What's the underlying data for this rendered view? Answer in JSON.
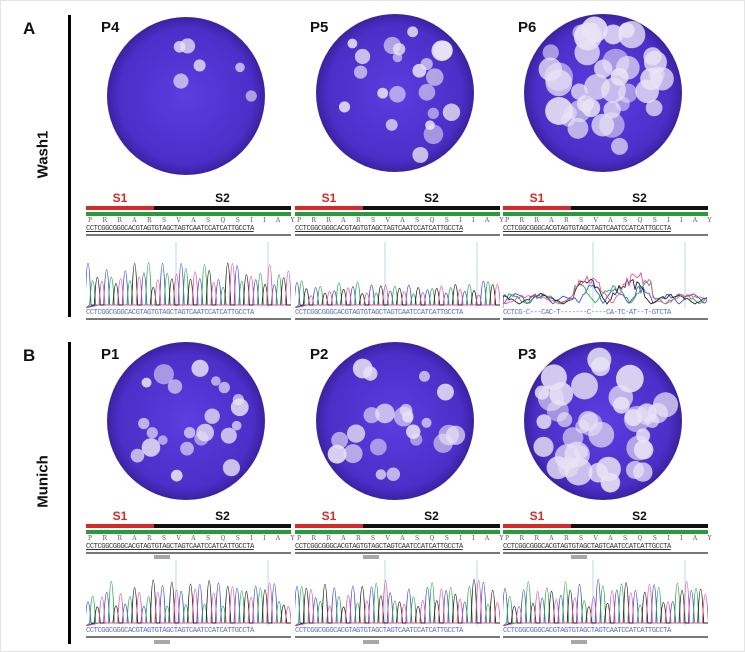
{
  "panels": [
    {
      "letter": "A",
      "row_label": "Wash1",
      "plates": [
        {
          "name": "P4",
          "plaque_level": "few",
          "aa": "P R R A R S V A S Q S I I A Y",
          "seq_ref": "CCTCGGCGGGCACGTAGTGTAGCTAGTCAATCCATCATTGCCTA",
          "seq_read": "CCTCGGCGGGCACGTAGTGTAGCTAGTCAATCCATCATTGCCTA",
          "trace": "clean"
        },
        {
          "name": "P5",
          "plaque_level": "medium",
          "aa": "P R R A R S V A S Q S I I A Y",
          "seq_ref": "CCTCGGCGGGCACGTAGTGTAGCTAGTCAATCCATCATTGCCTA",
          "seq_read": "CCTCGGCGGGCACGTAGTGTAGCTAGTCAATCCATCATTGCCTA",
          "trace": "low"
        },
        {
          "name": "P6",
          "plaque_level": "many",
          "aa": "P R R A R S V A S Q S I I A Y",
          "seq_ref": "CCTCGGCGGGCACGTAGTGTAGCTAGTCAATCCATCATTGCCTA",
          "seq_read": "CCTCG-C---CAC-T-------C----CA-TC-AT--T-GTCTA",
          "trace": "mixed"
        }
      ]
    },
    {
      "letter": "B",
      "row_label": "Munich",
      "plates": [
        {
          "name": "P1",
          "plaque_level": "medium",
          "aa": "P R R A R S V A S Q S I I A Y",
          "seq_ref": "CCTCGGCGGGCACGTAGTGTAGCTAGTCAATCCATCATTGCCTA",
          "seq_read": "CCTCGGCGGGCACGTAGTGTAGCTAGTCAATCCATCATTGCCTA",
          "trace": "clean"
        },
        {
          "name": "P2",
          "plaque_level": "medium",
          "aa": "P R R A R S V A S Q S I I A Y",
          "seq_ref": "CCTCGGCGGGCACGTAGTGTAGCTAGTCAATCCATCATTGCCTA",
          "seq_read": "CCTCGGCGGGCACGTAGTGTAGCTAGTCAATCCATCATTGCCTA",
          "trace": "clean"
        },
        {
          "name": "P3",
          "plaque_level": "many",
          "aa": "P R R A R S V A S Q S I I A Y",
          "seq_ref": "CCTCGGCGGGCACGTAGTGTAGCTAGTCAATCCATCATTGCCTA",
          "seq_read": "CCTCGGCGGGCACGTAGTGTAGCTAGTCAATCCATCATTGCCTA",
          "trace": "clean"
        }
      ]
    }
  ],
  "domains": {
    "s1": "S1",
    "s2": "S2"
  },
  "colors": {
    "s1": "#d42a2a",
    "s2": "#111111",
    "bar": "#2a9a3a",
    "plate": "#4a2fc8",
    "plaque": "#e8e4f4",
    "trace": [
      "#3b4fd8",
      "#2fa84a",
      "#222222",
      "#e0559a"
    ]
  }
}
